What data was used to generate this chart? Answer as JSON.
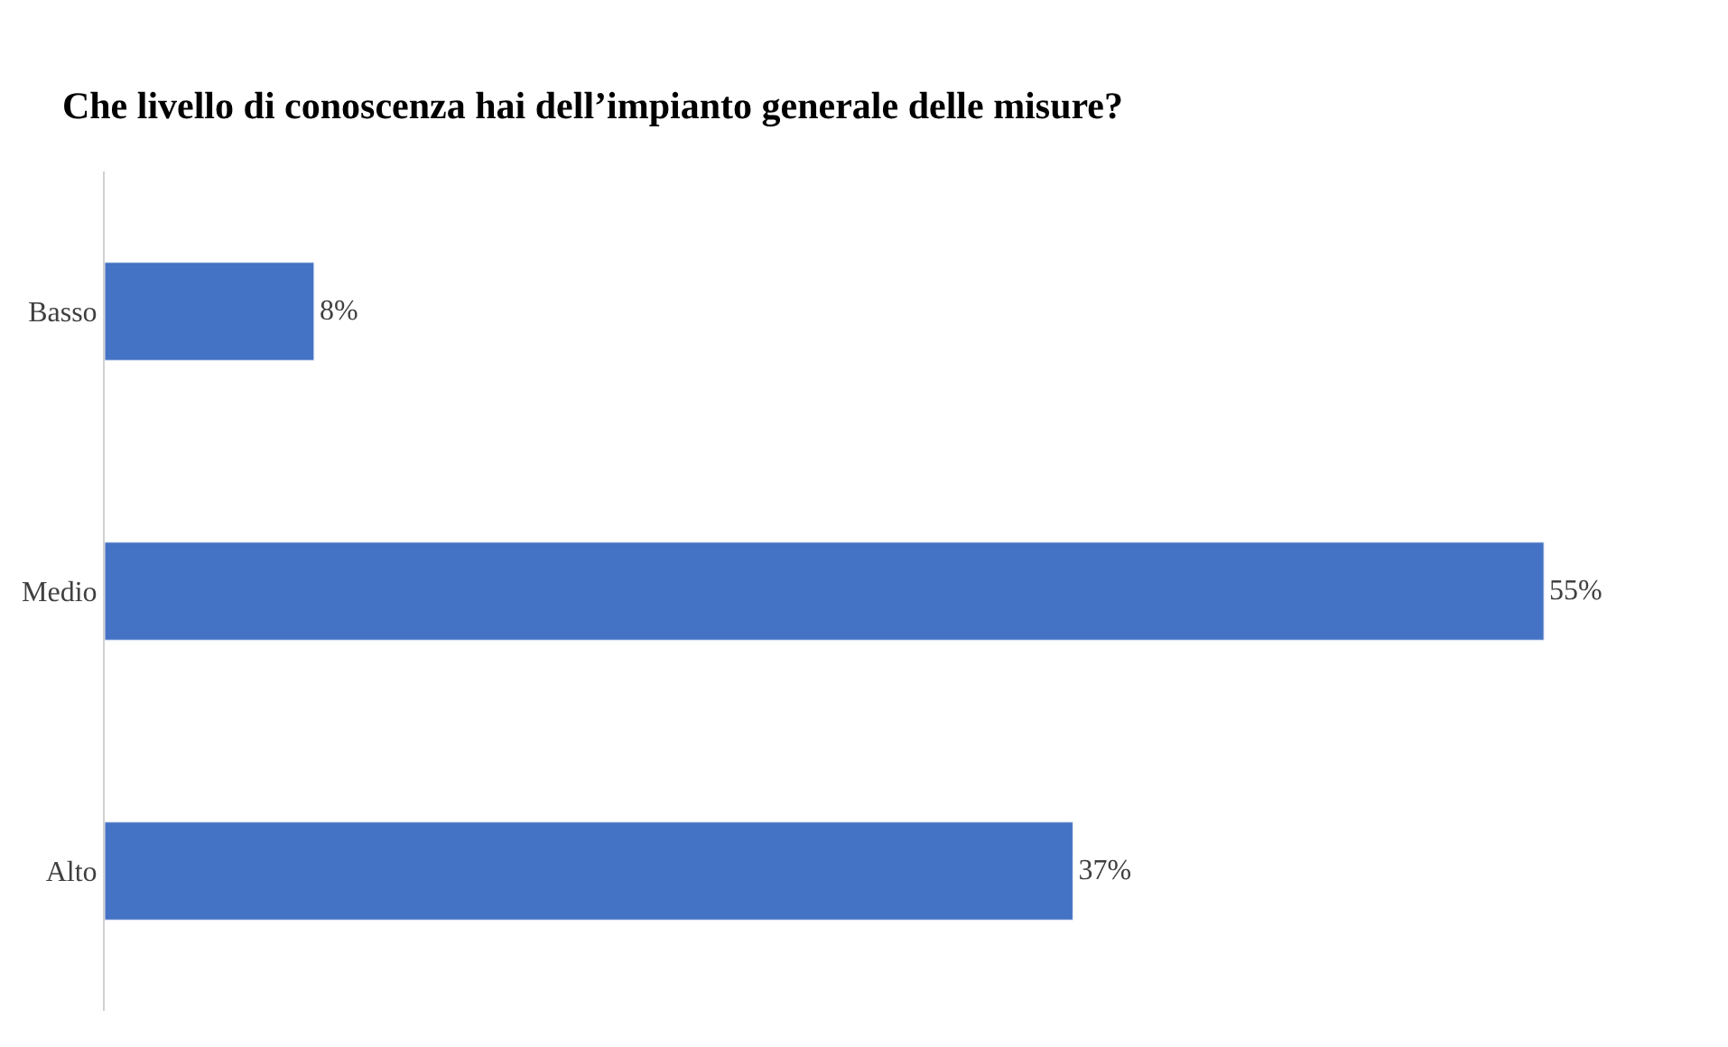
{
  "chart_data": {
    "type": "bar",
    "orientation": "horizontal",
    "title": "Che livello di conoscenza hai dell’impianto generale delle misure?",
    "categories": [
      "Basso",
      "Medio",
      "Alto"
    ],
    "values": [
      8,
      55,
      37
    ],
    "value_labels": [
      "8%",
      "55%",
      "37%"
    ],
    "color": "#4472c4",
    "legend": false
  }
}
